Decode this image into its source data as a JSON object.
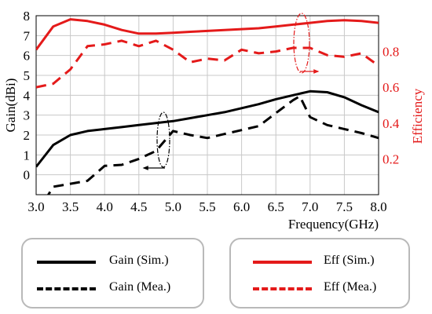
{
  "chart_data": {
    "type": "line",
    "xlabel": "Frequency(GHz)",
    "ylabel_left": "Gain(dBi)",
    "ylabel_right": "Efficiency",
    "xlim": [
      3.0,
      8.0
    ],
    "ylim_left": [
      -1,
      8
    ],
    "ylim_right": [
      0,
      1.0
    ],
    "grid": true,
    "x_ticks": [
      "3.0",
      "3.5",
      "4.0",
      "4.5",
      "5.0",
      "5.5",
      "6.0",
      "6.5",
      "7.0",
      "7.5",
      "8.0"
    ],
    "y_left_ticks": [
      "0",
      "1",
      "2",
      "3",
      "4",
      "5",
      "6",
      "7",
      "8"
    ],
    "y_right_ticks": [
      "0.2",
      "0.4",
      "0.6",
      "0.8"
    ],
    "series": [
      {
        "name": "Gain (Sim.)",
        "axis": "left",
        "color": "#000000",
        "style": "solid",
        "x": [
          3.0,
          3.25,
          3.5,
          3.75,
          4.0,
          4.25,
          4.5,
          4.75,
          5.0,
          5.25,
          5.5,
          5.75,
          6.0,
          6.25,
          6.5,
          6.75,
          7.0,
          7.25,
          7.5,
          7.75,
          8.0
        ],
        "y": [
          0.4,
          1.5,
          2.0,
          2.2,
          2.3,
          2.4,
          2.5,
          2.6,
          2.7,
          2.85,
          3.0,
          3.15,
          3.35,
          3.55,
          3.8,
          4.0,
          4.2,
          4.15,
          3.9,
          3.5,
          3.15
        ]
      },
      {
        "name": "Gain (Mea.)",
        "axis": "left",
        "color": "#000000",
        "style": "dashed",
        "x": [
          3.0,
          3.25,
          3.5,
          3.75,
          4.0,
          4.25,
          4.5,
          4.75,
          5.0,
          5.25,
          5.5,
          5.75,
          6.0,
          6.25,
          6.5,
          6.75,
          6.85,
          7.0,
          7.25,
          7.5,
          7.75,
          8.0
        ],
        "y": [
          -2.0,
          -0.6,
          -0.45,
          -0.3,
          0.45,
          0.5,
          0.8,
          1.2,
          2.2,
          2.0,
          1.85,
          2.05,
          2.25,
          2.45,
          3.1,
          3.75,
          3.95,
          2.9,
          2.5,
          2.3,
          2.1,
          1.85
        ]
      },
      {
        "name": "Eff (Sim.)",
        "axis": "right",
        "color": "#e41a1a",
        "style": "solid",
        "x": [
          3.0,
          3.25,
          3.5,
          3.75,
          4.0,
          4.25,
          4.5,
          4.75,
          5.0,
          5.25,
          5.5,
          5.75,
          6.0,
          6.25,
          6.5,
          6.75,
          7.0,
          7.25,
          7.5,
          7.75,
          8.0
        ],
        "y": [
          0.81,
          0.94,
          0.98,
          0.97,
          0.95,
          0.92,
          0.9,
          0.9,
          0.905,
          0.91,
          0.915,
          0.92,
          0.925,
          0.93,
          0.94,
          0.95,
          0.96,
          0.97,
          0.975,
          0.97,
          0.96
        ]
      },
      {
        "name": "Eff (Mea.)",
        "axis": "right",
        "color": "#e41a1a",
        "style": "dashed",
        "x": [
          3.0,
          3.25,
          3.5,
          3.75,
          4.0,
          4.25,
          4.5,
          4.75,
          5.0,
          5.25,
          5.5,
          5.75,
          6.0,
          6.25,
          6.5,
          6.75,
          7.0,
          7.25,
          7.5,
          7.75,
          8.0
        ],
        "y": [
          0.6,
          0.62,
          0.7,
          0.83,
          0.84,
          0.86,
          0.83,
          0.86,
          0.81,
          0.74,
          0.76,
          0.75,
          0.81,
          0.79,
          0.8,
          0.82,
          0.82,
          0.78,
          0.77,
          0.79,
          0.72
        ]
      }
    ],
    "legend": [
      {
        "label": "Gain (Sim.)",
        "color": "#000000",
        "style": "solid"
      },
      {
        "label": "Gain (Mea.)",
        "color": "#000000",
        "style": "dashed"
      },
      {
        "label": "Eff (Sim.)",
        "color": "#e41a1a",
        "style": "solid"
      },
      {
        "label": "Eff (Mea.)",
        "color": "#e41a1a",
        "style": "dashed"
      }
    ]
  }
}
